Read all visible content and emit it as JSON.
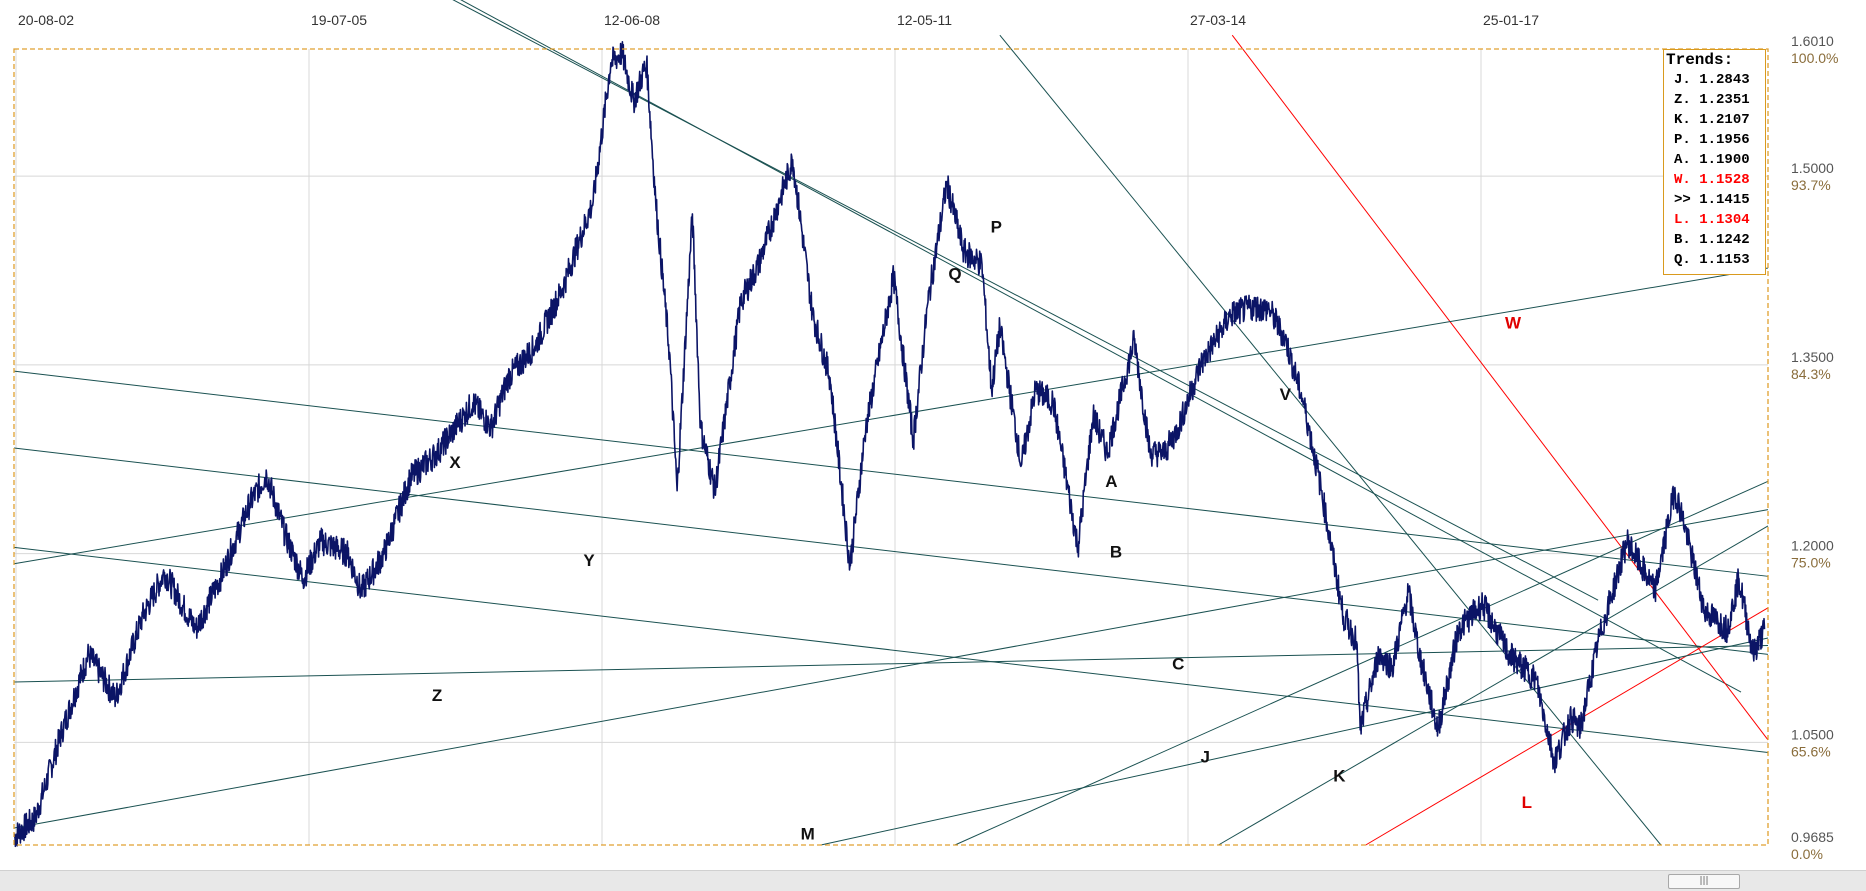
{
  "chart_data": {
    "type": "line",
    "title": "",
    "xlabel": "",
    "ylabel": "",
    "x_tick_labels": [
      "20-08-02",
      "19-07-05",
      "12-06-08",
      "12-05-11",
      "27-03-14",
      "25-01-17"
    ],
    "y_ticks": [
      {
        "price": "1.6010",
        "pct": "100.0%",
        "value": 1.601
      },
      {
        "price": "1.5000",
        "pct": "93.7%",
        "value": 1.5
      },
      {
        "price": "1.3500",
        "pct": "84.3%",
        "value": 1.35
      },
      {
        "price": "1.2000",
        "pct": "75.0%",
        "value": 1.2
      },
      {
        "price": "1.0500",
        "pct": "65.6%",
        "value": 1.05
      },
      {
        "price": "0.9685",
        "pct": "0.0%",
        "value": 0.9685
      }
    ],
    "ylim": [
      0.9685,
      1.601
    ],
    "xlim": [
      "2002-08-20",
      "2019-01-01"
    ],
    "grid": true,
    "series": [
      {
        "color": "#0b1466",
        "points": [
          [
            "2002-08-20",
            0.975
          ],
          [
            "2002-11-01",
            0.99
          ],
          [
            "2003-02-01",
            1.06
          ],
          [
            "2003-05-01",
            1.12
          ],
          [
            "2003-08-01",
            1.085
          ],
          [
            "2003-11-01",
            1.15
          ],
          [
            "2004-01-15",
            1.185
          ],
          [
            "2004-05-01",
            1.14
          ],
          [
            "2004-08-01",
            1.185
          ],
          [
            "2004-11-01",
            1.24
          ],
          [
            "2004-12-28",
            1.263
          ],
          [
            "2005-03-01",
            1.215
          ],
          [
            "2005-05-01",
            1.18
          ],
          [
            "2005-07-01",
            1.21
          ],
          [
            "2005-10-01",
            1.2
          ],
          [
            "2005-11-15",
            1.17
          ],
          [
            "2006-02-01",
            1.2
          ],
          [
            "2006-05-01",
            1.26
          ],
          [
            "2006-08-01",
            1.28
          ],
          [
            "2006-11-01",
            1.31
          ],
          [
            "2006-12-01",
            1.32
          ],
          [
            "2007-02-01",
            1.3
          ],
          [
            "2007-04-01",
            1.34
          ],
          [
            "2007-07-01",
            1.365
          ],
          [
            "2007-10-01",
            1.41
          ],
          [
            "2007-12-01",
            1.45
          ],
          [
            "2008-01-15",
            1.48
          ],
          [
            "2008-03-15",
            1.59
          ],
          [
            "2008-04-22",
            1.598
          ],
          [
            "2008-06-01",
            1.56
          ],
          [
            "2008-07-15",
            1.59
          ],
          [
            "2008-08-15",
            1.48
          ],
          [
            "2008-10-01",
            1.36
          ],
          [
            "2008-10-27",
            1.25
          ],
          [
            "2008-12-18",
            1.47
          ],
          [
            "2009-01-15",
            1.3
          ],
          [
            "2009-03-05",
            1.25
          ],
          [
            "2009-06-01",
            1.4
          ],
          [
            "2009-08-01",
            1.43
          ],
          [
            "2009-11-25",
            1.513
          ],
          [
            "2010-02-01",
            1.39
          ],
          [
            "2010-04-01",
            1.34
          ],
          [
            "2010-06-08",
            1.19
          ],
          [
            "2010-08-01",
            1.3
          ],
          [
            "2010-11-04",
            1.42
          ],
          [
            "2011-01-10",
            1.29
          ],
          [
            "2011-03-01",
            1.4
          ],
          [
            "2011-05-04",
            1.494
          ],
          [
            "2011-07-01",
            1.44
          ],
          [
            "2011-09-01",
            1.43
          ],
          [
            "2011-10-04",
            1.33
          ],
          [
            "2011-11-01",
            1.38
          ],
          [
            "2012-01-13",
            1.27
          ],
          [
            "2012-03-01",
            1.33
          ],
          [
            "2012-05-01",
            1.32
          ],
          [
            "2012-07-24",
            1.205
          ],
          [
            "2012-09-14",
            1.31
          ],
          [
            "2012-11-01",
            1.28
          ],
          [
            "2013-02-01",
            1.37
          ],
          [
            "2013-03-27",
            1.28
          ],
          [
            "2013-05-15",
            1.28
          ],
          [
            "2013-07-01",
            1.3
          ],
          [
            "2013-09-15",
            1.35
          ],
          [
            "2013-12-27",
            1.39
          ],
          [
            "2014-03-13",
            1.396
          ],
          [
            "2014-05-08",
            1.394
          ],
          [
            "2014-07-01",
            1.37
          ],
          [
            "2014-09-01",
            1.32
          ],
          [
            "2014-11-01",
            1.25
          ],
          [
            "2015-01-15",
            1.15
          ],
          [
            "2015-03-01",
            1.13
          ],
          [
            "2015-03-13",
            1.06
          ],
          [
            "2015-05-15",
            1.12
          ],
          [
            "2015-07-01",
            1.11
          ],
          [
            "2015-08-24",
            1.17
          ],
          [
            "2015-10-01",
            1.12
          ],
          [
            "2015-12-03",
            1.06
          ],
          [
            "2016-02-11",
            1.14
          ],
          [
            "2016-05-03",
            1.16
          ],
          [
            "2016-08-01",
            1.12
          ],
          [
            "2016-11-01",
            1.1
          ],
          [
            "2017-01-03",
            1.035
          ],
          [
            "2017-03-01",
            1.07
          ],
          [
            "2017-04-01",
            1.06
          ],
          [
            "2017-06-01",
            1.13
          ],
          [
            "2017-09-08",
            1.21
          ],
          [
            "2017-12-12",
            1.17
          ],
          [
            "2018-02-16",
            1.25
          ],
          [
            "2018-03-15",
            1.23
          ],
          [
            "2018-05-29",
            1.155
          ],
          [
            "2018-08-15",
            1.14
          ],
          [
            "2018-09-24",
            1.18
          ],
          [
            "2018-11-12",
            1.12
          ],
          [
            "2018-12-20",
            1.14
          ]
        ]
      }
    ],
    "trendlines": [
      {
        "label": "P",
        "color": "#1a5151",
        "from": [
          "2006-05-01",
          1.658
        ],
        "to": [
          "2017-06-01",
          1.163
        ],
        "label_at": [
          "2011-10-20",
          1.455
        ]
      },
      {
        "label": "Q",
        "color": "#1a5151",
        "from": [
          "2006-06-01",
          1.658
        ],
        "to": [
          "2018-10-01",
          1.09
        ],
        "label_at": [
          "2011-06-01",
          1.418
        ]
      },
      {
        "label": "V",
        "color": "#1a5151",
        "from": [
          "2011-11-01",
          1.612
        ],
        "to": [
          "2018-01-01",
          0.9685
        ],
        "label_at": [
          "2014-07-01",
          1.322
        ]
      },
      {
        "label": "W",
        "color": "#ff0000",
        "from": [
          "2014-01-01",
          1.612
        ],
        "to": [
          "2019-01-01",
          1.052
        ],
        "label_at": [
          "2016-08-15",
          1.379
        ]
      },
      {
        "label": "X",
        "color": "#1a5151",
        "from": [
          "2002-08-20",
          1.192
        ],
        "to": [
          "2019-01-01",
          1.427
        ],
        "label_at": [
          "2006-10-01",
          1.268
        ]
      },
      {
        "label": "A",
        "color": "#1a5151",
        "from": [
          "2002-08-20",
          1.345
        ],
        "to": [
          "2019-01-01",
          1.182
        ],
        "label_at": [
          "2012-11-15",
          1.253
        ]
      },
      {
        "label": "Y",
        "color": "#1a5151",
        "from": [
          "2002-08-20",
          1.284
        ],
        "to": [
          "2019-01-01",
          1.12
        ],
        "label_at": [
          "2008-01-01",
          1.19
        ]
      },
      {
        "label": "B",
        "color": "#1a5151",
        "from": [
          "2002-08-20",
          1.205
        ],
        "to": [
          "2019-01-01",
          1.042
        ],
        "label_at": [
          "2012-12-01",
          1.197
        ]
      },
      {
        "label": "Z",
        "color": "#1a5151",
        "from": [
          "2002-08-20",
          0.982
        ],
        "to": [
          "2019-01-01",
          1.235
        ],
        "label_at": [
          "2006-08-01",
          1.083
        ]
      },
      {
        "label": "C",
        "color": "#1a5151",
        "from": [
          "2002-08-20",
          1.098
        ],
        "to": [
          "2019-01-01",
          1.127
        ],
        "label_at": [
          "2013-07-01",
          1.108
        ]
      },
      {
        "label": "J",
        "color": "#1a5151",
        "from": [
          "2011-06-01",
          0.9685
        ],
        "to": [
          "2019-01-01",
          1.2575
        ],
        "label_at": [
          "2013-10-01",
          1.034
        ]
      },
      {
        "label": "K",
        "color": "#1a5151",
        "from": [
          "2013-11-15",
          0.9685
        ],
        "to": [
          "2019-01-01",
          1.222
        ],
        "label_at": [
          "2015-01-01",
          1.019
        ]
      },
      {
        "label": "L",
        "color": "#ff0000",
        "from": [
          "2015-04-01",
          0.9685
        ],
        "to": [
          "2019-01-01",
          1.157
        ],
        "label_at": [
          "2016-10-01",
          0.998
        ]
      },
      {
        "label": "M",
        "color": "#1a5151",
        "from": [
          "2010-03-01",
          0.9685
        ],
        "to": [
          "2019-01-01",
          1.133
        ],
        "label_at": [
          "2010-01-15",
          0.973
        ]
      }
    ]
  },
  "legend": {
    "title": "Trends:",
    "items": [
      {
        "key": "J.",
        "value": "1.2843",
        "color": "#000000"
      },
      {
        "key": "Z.",
        "value": "1.2351",
        "color": "#000000"
      },
      {
        "key": "K.",
        "value": "1.2107",
        "color": "#000000"
      },
      {
        "key": "P.",
        "value": "1.1956",
        "color": "#000000"
      },
      {
        "key": "A.",
        "value": "1.1900",
        "color": "#000000"
      },
      {
        "key": "W.",
        "value": "1.1528",
        "color": "#ff0000"
      },
      {
        "key": ">>",
        "value": "1.1415",
        "color": "#000000"
      },
      {
        "key": "L.",
        "value": "1.1304",
        "color": "#ff0000"
      },
      {
        "key": "B.",
        "value": "1.1242",
        "color": "#000000"
      },
      {
        "key": "Q.",
        "value": "1.1153",
        "color": "#000000"
      }
    ]
  },
  "scrollbar": {
    "thumb_glyph": "|||"
  }
}
